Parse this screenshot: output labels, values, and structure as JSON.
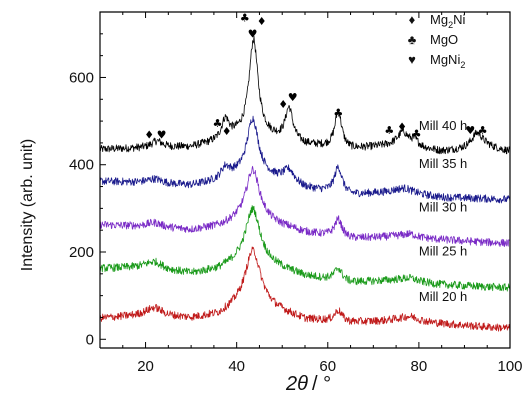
{
  "chart_data": {
    "type": "line",
    "title": "",
    "xlabel_symbol": "2θ",
    "xlabel_unit": "/ °",
    "ylabel": "Intensity (arb. unit)",
    "xlim": [
      10,
      100
    ],
    "ylim": [
      -20,
      750
    ],
    "xticks": [
      20,
      40,
      60,
      80,
      100
    ],
    "yticks": [
      0,
      200,
      400,
      600
    ],
    "grid": false,
    "legend_position": "top-right",
    "legend": [
      {
        "glyph": "♦",
        "label": "Mg",
        "sub": "2",
        "label_after": "Ni",
        "icon": "diamond-icon"
      },
      {
        "glyph": "♣",
        "label": "MgO",
        "sub": "",
        "label_after": "",
        "icon": "club-icon"
      },
      {
        "glyph": "♥",
        "label": "MgNi",
        "sub": "2",
        "label_after": "",
        "icon": "heart-icon"
      }
    ],
    "series": [
      {
        "name": "Mill 40 h",
        "color": "#000000",
        "baseline": [
          [
            10,
            435
          ],
          [
            20,
            438
          ],
          [
            30,
            440
          ],
          [
            36,
            452
          ],
          [
            40,
            465
          ],
          [
            44,
            470
          ],
          [
            48,
            460
          ],
          [
            55,
            445
          ],
          [
            65,
            435
          ],
          [
            75,
            445
          ],
          [
            85,
            430
          ],
          [
            95,
            440
          ],
          [
            100,
            430
          ]
        ],
        "peaks": [
          [
            22.5,
            15,
            1.5
          ],
          [
            37.5,
            45,
            1.0
          ],
          [
            43.7,
            215,
            1.2
          ],
          [
            51.5,
            75,
            1.0
          ],
          [
            62.3,
            85,
            0.9
          ],
          [
            76.5,
            30,
            1.3
          ],
          [
            79,
            15,
            1.2
          ],
          [
            92.8,
            35,
            1.5
          ]
        ],
        "noise": 9
      },
      {
        "name": "Mill 35 h",
        "color": "#1a1a8c",
        "baseline": [
          [
            10,
            362
          ],
          [
            20,
            358
          ],
          [
            30,
            352
          ],
          [
            36,
            362
          ],
          [
            40,
            375
          ],
          [
            44,
            380
          ],
          [
            48,
            368
          ],
          [
            55,
            345
          ],
          [
            65,
            330
          ],
          [
            75,
            338
          ],
          [
            85,
            325
          ],
          [
            95,
            322
          ],
          [
            100,
            320
          ]
        ],
        "peaks": [
          [
            22,
            10,
            2.0
          ],
          [
            37.5,
            25,
            1.2
          ],
          [
            43.5,
            125,
            1.5
          ],
          [
            51.5,
            30,
            1.5
          ],
          [
            62.3,
            60,
            1.0
          ],
          [
            77,
            10,
            2.0
          ]
        ],
        "noise": 9
      },
      {
        "name": "Mill 30 h",
        "color": "#7a2bc6",
        "baseline": [
          [
            10,
            262
          ],
          [
            20,
            258
          ],
          [
            30,
            250
          ],
          [
            36,
            258
          ],
          [
            40,
            270
          ],
          [
            44,
            280
          ],
          [
            48,
            265
          ],
          [
            55,
            245
          ],
          [
            65,
            230
          ],
          [
            75,
            235
          ],
          [
            85,
            228
          ],
          [
            95,
            222
          ],
          [
            100,
            220
          ]
        ],
        "peaks": [
          [
            22,
            10,
            2.0
          ],
          [
            43.5,
            110,
            1.8
          ],
          [
            62.3,
            40,
            1.0
          ],
          [
            78,
            8,
            2.0
          ]
        ],
        "noise": 9
      },
      {
        "name": "Mill 25 h",
        "color": "#1a9a1a",
        "baseline": [
          [
            10,
            162
          ],
          [
            20,
            165
          ],
          [
            30,
            150
          ],
          [
            36,
            160
          ],
          [
            40,
            175
          ],
          [
            44,
            185
          ],
          [
            48,
            168
          ],
          [
            55,
            145
          ],
          [
            65,
            130
          ],
          [
            75,
            135
          ],
          [
            85,
            125
          ],
          [
            95,
            120
          ],
          [
            100,
            118
          ]
        ],
        "peaks": [
          [
            22,
            15,
            2.0
          ],
          [
            43.5,
            115,
            1.9
          ],
          [
            62.3,
            28,
            1.0
          ],
          [
            78,
            8,
            2.0
          ]
        ],
        "noise": 9
      },
      {
        "name": "Mill 20 h",
        "color": "#c01a1a",
        "baseline": [
          [
            10,
            48
          ],
          [
            20,
            55
          ],
          [
            30,
            48
          ],
          [
            36,
            55
          ],
          [
            40,
            75
          ],
          [
            44,
            90
          ],
          [
            48,
            70
          ],
          [
            55,
            45
          ],
          [
            65,
            38
          ],
          [
            75,
            42
          ],
          [
            85,
            35
          ],
          [
            95,
            28
          ],
          [
            100,
            25
          ]
        ],
        "peaks": [
          [
            22,
            18,
            2.0
          ],
          [
            43.5,
            115,
            2.0
          ],
          [
            62.3,
            25,
            1.0
          ],
          [
            78,
            12,
            2.5
          ]
        ],
        "noise": 9
      }
    ],
    "series_labels": [
      {
        "text": "Mill 40 h",
        "x": 80,
        "y": 480
      },
      {
        "text": "Mill 35 h",
        "x": 80,
        "y": 392
      },
      {
        "text": "Mill 30 h",
        "x": 80,
        "y": 293
      },
      {
        "text": "Mill 25 h",
        "x": 80,
        "y": 192
      },
      {
        "text": "Mill 20 h",
        "x": 80,
        "y": 88
      }
    ],
    "peak_markers": [
      {
        "glyph": "♦",
        "x": 20.8,
        "y": 460,
        "icon": "diamond-icon"
      },
      {
        "glyph": "♥",
        "x": 23.5,
        "y": 460,
        "icon": "heart-icon"
      },
      {
        "glyph": "♣",
        "x": 35.8,
        "y": 486,
        "icon": "club-icon"
      },
      {
        "glyph": "♦",
        "x": 37.8,
        "y": 468,
        "icon": "diamond-icon"
      },
      {
        "glyph": "♣",
        "x": 41.8,
        "y": 728,
        "icon": "club-icon"
      },
      {
        "glyph": "♦",
        "x": 45.5,
        "y": 720,
        "icon": "diamond-icon"
      },
      {
        "glyph": "♥",
        "x": 43.5,
        "y": 692,
        "icon": "heart-icon"
      },
      {
        "glyph": "♦",
        "x": 50.2,
        "y": 530,
        "icon": "diamond-icon"
      },
      {
        "glyph": "♥",
        "x": 52.3,
        "y": 546,
        "icon": "heart-icon"
      },
      {
        "glyph": "♣",
        "x": 62.3,
        "y": 510,
        "icon": "club-icon"
      },
      {
        "glyph": "♣",
        "x": 73.5,
        "y": 470,
        "icon": "club-icon"
      },
      {
        "glyph": "♦",
        "x": 76.3,
        "y": 478,
        "icon": "diamond-icon"
      },
      {
        "glyph": "♣",
        "x": 79.5,
        "y": 462,
        "icon": "club-icon"
      },
      {
        "glyph": "♥",
        "x": 91.3,
        "y": 470,
        "icon": "heart-icon"
      },
      {
        "glyph": "♣",
        "x": 94,
        "y": 470,
        "icon": "club-icon"
      }
    ]
  }
}
